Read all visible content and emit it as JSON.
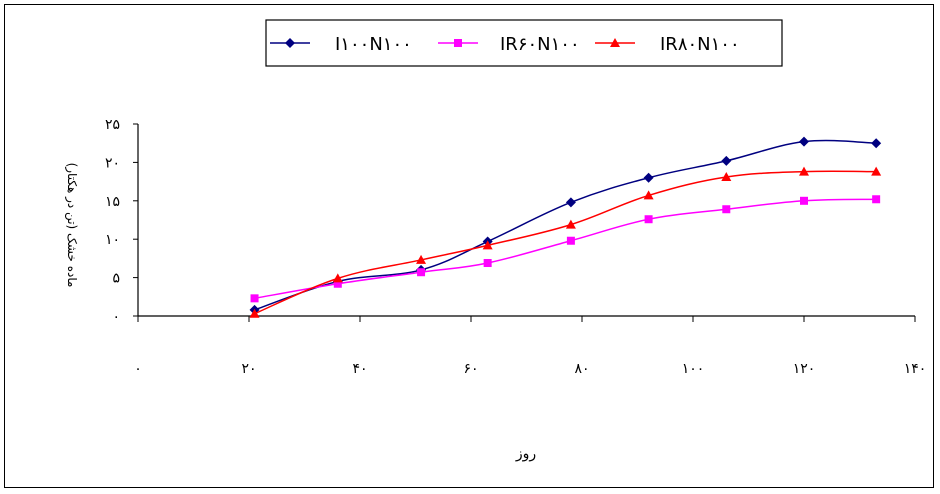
{
  "chart_data": {
    "type": "line",
    "title": "",
    "xlabel": "روز",
    "ylabel": "ماده خشک  (تن در هکتار)",
    "x_ticks": [
      "۰",
      "۲۰",
      "۴۰",
      "۶۰",
      "۸۰",
      "۱۰۰",
      "۱۲۰",
      "۱۴۰"
    ],
    "y_ticks": [
      "۰",
      "۵",
      "۱۰",
      "۱۵",
      "۲۰",
      "۲۵"
    ],
    "xlim": [
      0,
      140
    ],
    "ylim": [
      0,
      25
    ],
    "x": [
      21,
      36,
      51,
      63,
      78,
      92,
      106,
      120,
      133
    ],
    "series": [
      {
        "name": "I۱۰۰N۱۰۰",
        "color": "#000080",
        "marker": "diamond",
        "values": [
          0.8,
          4.5,
          6.0,
          9.7,
          14.8,
          18.0,
          20.2,
          22.7,
          22.5
        ]
      },
      {
        "name": "IR۶۰N۱۰۰",
        "color": "#FF00FF",
        "marker": "square",
        "values": [
          2.3,
          4.2,
          5.7,
          6.9,
          9.8,
          12.6,
          13.9,
          15.0,
          15.2
        ]
      },
      {
        "name": "IR۸۰N۱۰۰",
        "color": "#FF0000",
        "marker": "triangle",
        "values": [
          0.3,
          4.9,
          7.3,
          9.2,
          11.9,
          15.7,
          18.1,
          18.8,
          18.8
        ]
      }
    ],
    "grid": false,
    "legend": "top-center"
  }
}
